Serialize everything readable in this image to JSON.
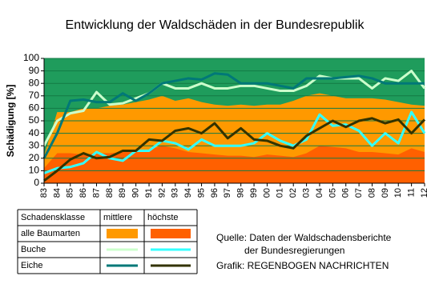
{
  "chart_data": {
    "type": "area-line",
    "title": "Entwicklung der Waldschäden in der Bundesrepublik",
    "y_label": "Schädigung [%]",
    "categories": [
      "83",
      "84",
      "85",
      "86",
      "87",
      "88",
      "89",
      "90",
      "91",
      "92",
      "93",
      "94",
      "95",
      "96",
      "97",
      "98",
      "99",
      "00",
      "01",
      "02",
      "03",
      "04",
      "05",
      "06",
      "07",
      "08",
      "09",
      "10",
      "11",
      "12"
    ],
    "ylim": [
      0,
      100
    ],
    "yticks": [
      0,
      10,
      20,
      30,
      40,
      50,
      60,
      70,
      80,
      90,
      100
    ],
    "grid": true,
    "background": "#1f9c5c",
    "legend_header": [
      "Schadensklasse",
      "mittlere",
      "höchste"
    ],
    "series": [
      {
        "name": "alle Baumarten",
        "kind": "area",
        "mittlere": {
          "color": "#ff9900",
          "values": [
            22,
            57,
            57,
            60,
            60,
            62,
            63,
            65,
            67,
            70,
            66,
            68,
            65,
            63,
            62,
            63,
            62,
            63,
            63,
            66,
            70,
            72,
            70,
            68,
            68,
            68,
            67,
            65,
            63,
            62
          ]
        },
        "hoechste": {
          "color": "#ff6000",
          "values": [
            12,
            24,
            24,
            23,
            24,
            24,
            25,
            26,
            27,
            30,
            28,
            25,
            24,
            23,
            22,
            22,
            21,
            23,
            22,
            21,
            24,
            30,
            29,
            28,
            25,
            25,
            24,
            23,
            28,
            25
          ]
        }
      },
      {
        "name": "Buche",
        "kind": "line",
        "mittlere": {
          "color": "#ccffcc",
          "values": [
            30,
            50,
            56,
            58,
            73,
            63,
            64,
            68,
            72,
            80,
            76,
            76,
            80,
            76,
            76,
            78,
            78,
            76,
            74,
            74,
            78,
            86,
            84,
            84,
            84,
            76,
            84,
            82,
            90,
            76
          ]
        },
        "hoechste": {
          "color": "#33ffff",
          "values": [
            8,
            12,
            13,
            16,
            25,
            20,
            18,
            26,
            26,
            34,
            32,
            27,
            35,
            30,
            30,
            30,
            32,
            40,
            34,
            30,
            35,
            55,
            46,
            47,
            42,
            30,
            40,
            32,
            57,
            40
          ]
        }
      },
      {
        "name": "Eiche",
        "kind": "line",
        "mittlere": {
          "color": "#007878",
          "values": [
            20,
            40,
            66,
            67,
            65,
            65,
            72,
            66,
            72,
            80,
            82,
            84,
            83,
            88,
            87,
            80,
            80,
            80,
            78,
            76,
            84,
            84,
            84,
            85,
            86,
            84,
            80,
            80,
            80,
            80
          ]
        },
        "hoechste": {
          "color": "#333300",
          "values": [
            2,
            10,
            19,
            24,
            20,
            21,
            26,
            26,
            35,
            34,
            42,
            44,
            40,
            48,
            36,
            44,
            35,
            34,
            30,
            28,
            38,
            44,
            50,
            45,
            50,
            52,
            48,
            51,
            40,
            51
          ]
        }
      }
    ],
    "source": [
      "Quelle: Daten der Waldschadensberichte",
      "der Bundesregierungen"
    ],
    "credit": "Grafik: REGENBOGEN NACHRICHTEN"
  }
}
